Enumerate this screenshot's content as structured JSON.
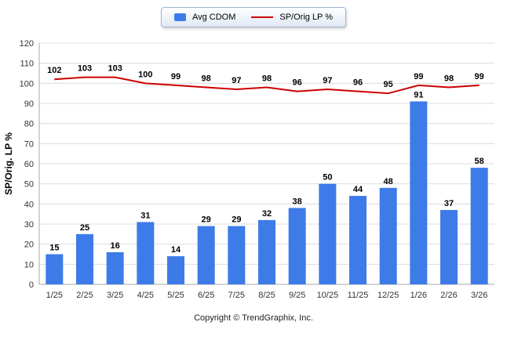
{
  "legend": {
    "items": [
      {
        "label": "Avg CDOM",
        "type": "bar"
      },
      {
        "label": "SP/Orig LP %",
        "type": "line"
      }
    ]
  },
  "chart_data": {
    "type": "bar",
    "subtype": "bar+line combo",
    "categories": [
      "1/25",
      "2/25",
      "3/25",
      "4/25",
      "5/25",
      "6/25",
      "7/25",
      "8/25",
      "9/25",
      "10/25",
      "11/25",
      "12/25",
      "1/26",
      "2/26",
      "3/26"
    ],
    "series": [
      {
        "name": "Avg CDOM",
        "type": "bar",
        "color": "#3d7be8",
        "values": [
          15,
          25,
          16,
          31,
          14,
          29,
          29,
          32,
          38,
          50,
          44,
          48,
          91,
          37,
          58
        ]
      },
      {
        "name": "SP/Orig LP %",
        "type": "line",
        "color": "#cc0000",
        "values": [
          102,
          103,
          103,
          100,
          99,
          98,
          97,
          98,
          96,
          97,
          96,
          95,
          99,
          98,
          99
        ]
      }
    ],
    "title": "",
    "xlabel": "",
    "ylabel": "SP/Orig. LP %",
    "ylim": [
      0,
      120
    ],
    "ytick_step": 10,
    "grid": true,
    "legend_position": "top",
    "colors": {
      "grid": "#dcdcdc",
      "axis": "#aaaaaa",
      "tick_text": "#333333",
      "value_text": "#000000"
    }
  },
  "footer": {
    "copyright": "Copyright © TrendGraphix, Inc."
  }
}
